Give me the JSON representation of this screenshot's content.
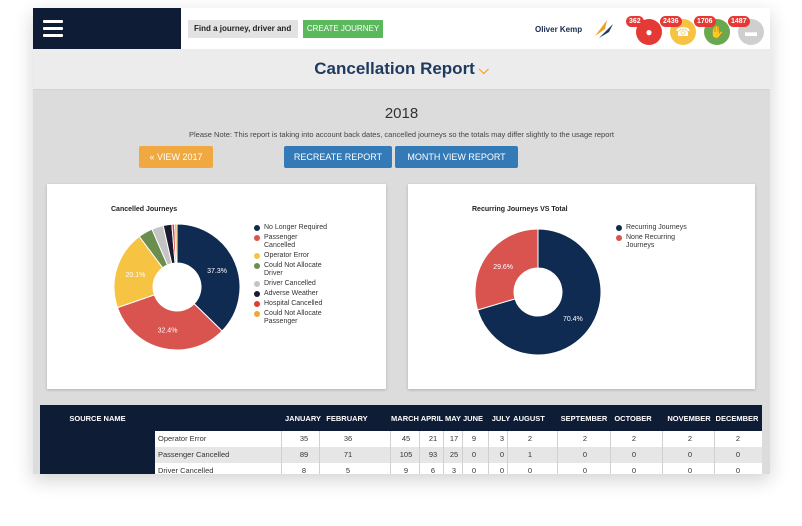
{
  "topbar": {
    "search_placeholder": "Find a journey, driver and",
    "create_button": "CREATE JOURNEY",
    "user_name": "Oliver Kemp",
    "badges": [
      {
        "count": "362",
        "icon": "user-icon",
        "color": "#e53935"
      },
      {
        "count": "2436",
        "icon": "phone-icon",
        "color": "#f6c343"
      },
      {
        "count": "1706",
        "icon": "thumbs-up-icon",
        "color": "#6aa84f"
      },
      {
        "count": "1487",
        "icon": "card-icon",
        "color": "#cfcfcf"
      }
    ]
  },
  "header": {
    "title": "Cancellation Report"
  },
  "report": {
    "year": "2018",
    "note": "Please Note: This report is taking into account back dates, cancelled journeys so the totals may differ slightly to the usage report",
    "view_prev_button": "« VIEW 2017",
    "recreate_button": "RECREATE REPORT",
    "month_view_button": "MONTH VIEW REPORT"
  },
  "chart_data": [
    {
      "type": "pie",
      "title": "Cancelled Journeys",
      "labels": [
        "No Longer Required",
        "Passenger Cancelled",
        "Operator Error",
        "Could Not Allocate Driver",
        "Driver Cancelled",
        "Adverse Weather",
        "Hospital Cancelled",
        "Could Not Allocate Passenger"
      ],
      "values": [
        37.3,
        32.4,
        20.1,
        3.7,
        3.0,
        2.2,
        0.7,
        0.6
      ],
      "value_labels": [
        "37.3%",
        "32.4%",
        "20.1%",
        "",
        "",
        "",
        "",
        ""
      ],
      "colors": [
        "#0f2b52",
        "#d9534f",
        "#f6c343",
        "#6b8e4e",
        "#c4c4c4",
        "#1b1b2f",
        "#e53935",
        "#f0a830"
      ],
      "legend": "right"
    },
    {
      "type": "pie",
      "title": "Recurring Journeys VS Total",
      "labels": [
        "Recurring Journeys",
        "None Recurring Journeys"
      ],
      "values": [
        70.4,
        29.6
      ],
      "value_labels": [
        "70.4%",
        "29.6%"
      ],
      "colors": [
        "#0f2b52",
        "#d9534f"
      ],
      "legend": "right"
    }
  ],
  "table": {
    "source_header": "SOURCE NAME",
    "months": [
      "JANUARY",
      "FEBRUARY",
      "MARCH",
      "APRIL",
      "MAY",
      "JUNE",
      "JULY",
      "AUGUST",
      "SEPTEMBER",
      "OCTOBER",
      "NOVEMBER",
      "DECEMBER"
    ],
    "rows": [
      {
        "name": "Operator Error",
        "values": [
          "35",
          "36",
          "45",
          "21",
          "17",
          "9",
          "3",
          "2",
          "2",
          "2",
          "2",
          "2"
        ]
      },
      {
        "name": "Passenger Cancelled",
        "values": [
          "89",
          "71",
          "105",
          "93",
          "25",
          "0",
          "0",
          "1",
          "0",
          "0",
          "0",
          "0"
        ]
      },
      {
        "name": "Driver Cancelled",
        "values": [
          "8",
          "5",
          "9",
          "6",
          "3",
          "0",
          "0",
          "0",
          "0",
          "0",
          "0",
          "0"
        ]
      }
    ]
  }
}
